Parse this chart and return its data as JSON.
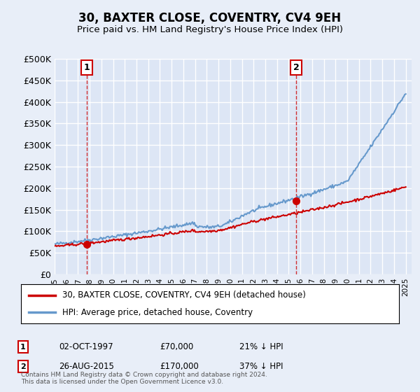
{
  "title": "30, BAXTER CLOSE, COVENTRY, CV4 9EH",
  "subtitle": "Price paid vs. HM Land Registry's House Price Index (HPI)",
  "ylabel": "",
  "background_color": "#e8eef8",
  "plot_bg_color": "#dde6f5",
  "ylim": [
    0,
    500000
  ],
  "yticks": [
    0,
    50000,
    100000,
    150000,
    200000,
    250000,
    300000,
    350000,
    400000,
    450000,
    500000
  ],
  "ytick_labels": [
    "£0",
    "£50K",
    "£100K",
    "£150K",
    "£200K",
    "£250K",
    "£300K",
    "£350K",
    "£400K",
    "£450K",
    "£500K"
  ],
  "xlim_start": 1995.0,
  "xlim_end": 2025.5,
  "transaction1_x": 1997.75,
  "transaction1_y": 70000,
  "transaction1_label": "1",
  "transaction1_date": "02-OCT-1997",
  "transaction1_price": "£70,000",
  "transaction1_hpi": "21% ↓ HPI",
  "transaction2_x": 2015.65,
  "transaction2_y": 170000,
  "transaction2_label": "2",
  "transaction2_date": "26-AUG-2015",
  "transaction2_price": "£170,000",
  "transaction2_hpi": "37% ↓ HPI",
  "legend_line1": "30, BAXTER CLOSE, COVENTRY, CV4 9EH (detached house)",
  "legend_line2": "HPI: Average price, detached house, Coventry",
  "footer": "Contains HM Land Registry data © Crown copyright and database right 2024.\nThis data is licensed under the Open Government Licence v3.0.",
  "line_color_property": "#cc0000",
  "line_color_hpi": "#6699cc",
  "marker_color": "#cc0000",
  "dashed_color": "#cc0000"
}
